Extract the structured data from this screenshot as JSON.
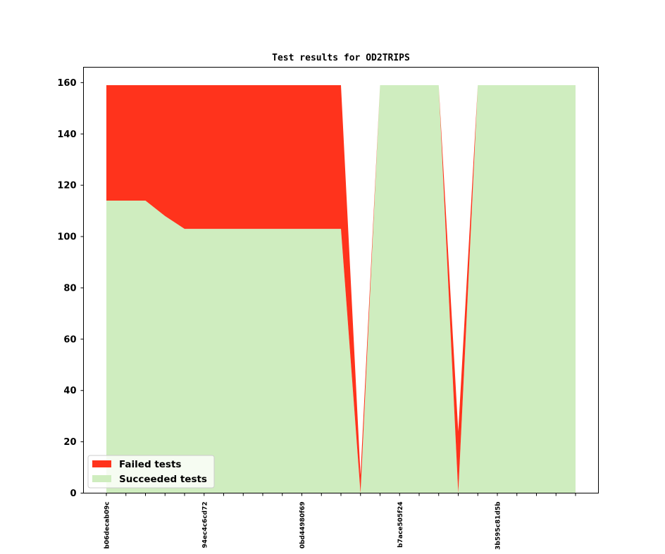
{
  "chart_data": {
    "type": "area",
    "stacked": true,
    "title": "Test results for OD2TRIPS",
    "xlabel": "",
    "ylabel": "",
    "ylim": [
      0,
      166
    ],
    "yticks": [
      0,
      20,
      40,
      60,
      80,
      100,
      120,
      140,
      160
    ],
    "grid": false,
    "legend_position": "lower-left",
    "x_tick_labels": [
      {
        "index": 0,
        "label": "b06decab09c"
      },
      {
        "index": 5,
        "label": "94ec4c6cd72"
      },
      {
        "index": 10,
        "label": "0bd44980f69"
      },
      {
        "index": 15,
        "label": "b7ace505f24"
      },
      {
        "index": 20,
        "label": "3b595c81d5b"
      }
    ],
    "n_points": 25,
    "series": [
      {
        "name": "Succeeded tests",
        "color": "#cfedbf",
        "values": [
          114,
          114,
          114,
          108,
          103,
          103,
          103,
          103,
          103,
          103,
          103,
          103,
          103,
          0,
          159,
          159,
          159,
          159,
          0,
          159,
          159,
          159,
          159,
          159,
          159
        ]
      },
      {
        "name": "Failed tests",
        "color": "#ff331c",
        "values": [
          45,
          45,
          45,
          51,
          56,
          56,
          56,
          56,
          56,
          56,
          56,
          56,
          56,
          7,
          0,
          0,
          0,
          0,
          24,
          0,
          0,
          0,
          0,
          0,
          0
        ]
      }
    ]
  }
}
